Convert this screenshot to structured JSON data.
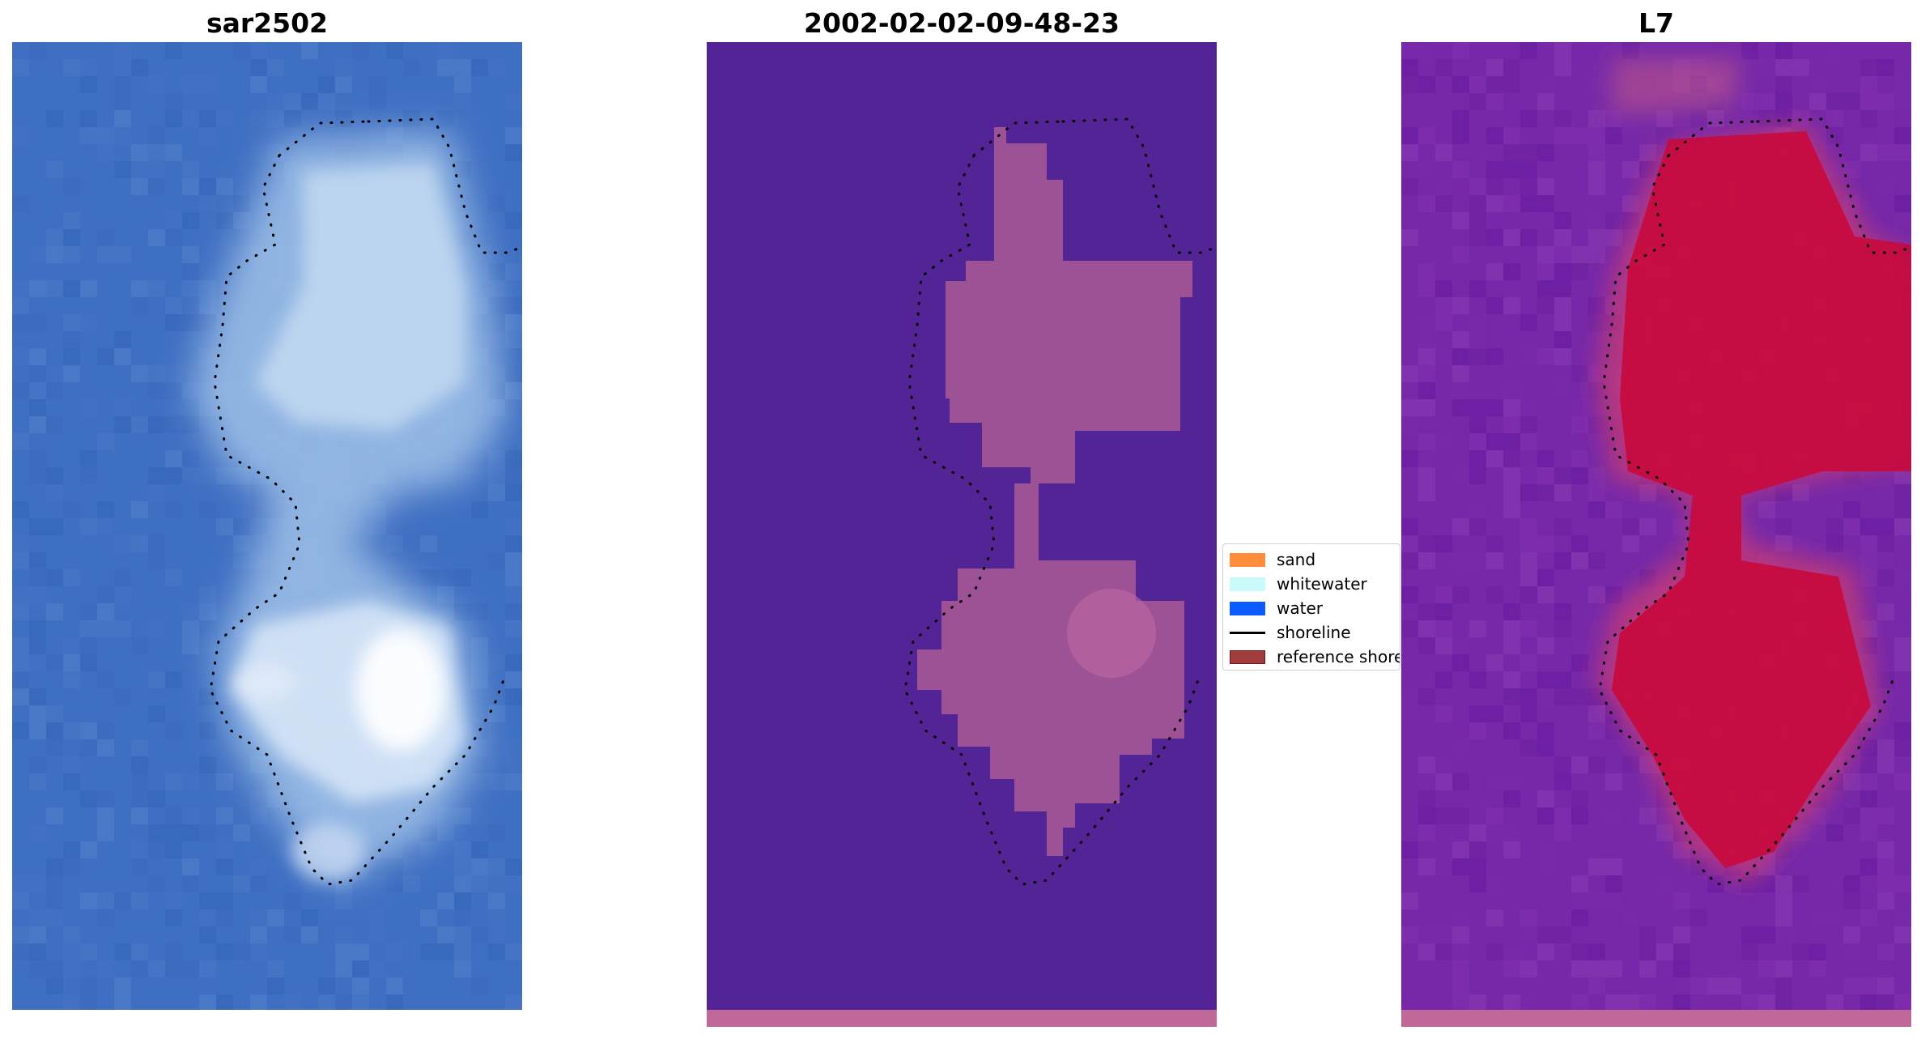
{
  "panels": [
    {
      "title": "sar2502"
    },
    {
      "title": "2002-02-02-09-48-23"
    },
    {
      "title": "L7"
    }
  ],
  "legend": {
    "items": [
      {
        "label": "sand",
        "kind": "patch",
        "color": "#ff8c3a"
      },
      {
        "label": "whitewater",
        "kind": "patch",
        "color": "#c8fafa"
      },
      {
        "label": "water",
        "kind": "patch",
        "color": "#0a5aff"
      },
      {
        "label": "shoreline",
        "kind": "line",
        "color": "#000000"
      },
      {
        "label": "reference shoreline",
        "kind": "patch",
        "color": "#a03c3c"
      }
    ]
  },
  "colors": {
    "rgb_water": "#3f6fc2",
    "rgb_island": "#c5dbf2",
    "classified_water": "#532496",
    "classified_land": "#aa5a96",
    "index_background": "#7628a8",
    "index_island": "#c8083a",
    "strip": "#c06898"
  }
}
